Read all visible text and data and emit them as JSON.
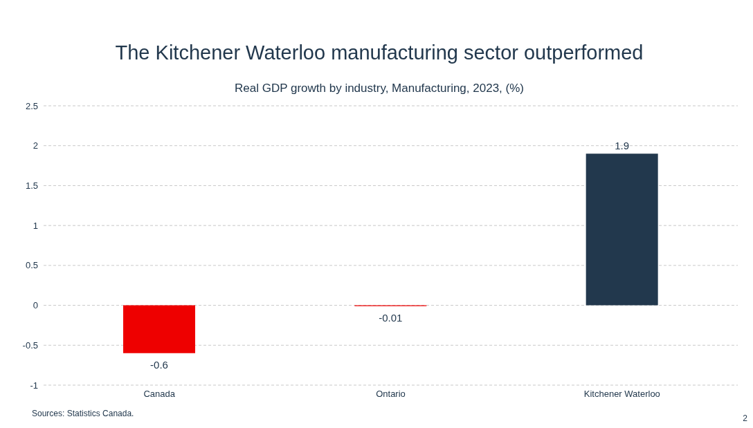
{
  "chart_data": {
    "type": "bar",
    "title": "The Kitchener Waterloo manufacturing sector outperformed",
    "subtitle": "Real GDP growth by industry, Manufacturing, 2023, (%)",
    "categories": [
      "Canada",
      "Ontario",
      "Kitchener Waterloo"
    ],
    "values": [
      -0.6,
      -0.01,
      1.9
    ],
    "colors": [
      "#ee0000",
      "#ee0000",
      "#22384d"
    ],
    "ylim": [
      -1,
      2.5
    ],
    "yticks": [
      -1,
      -0.5,
      0,
      0.5,
      1,
      1.5,
      2,
      2.5
    ],
    "grid": "y",
    "data_labels": true,
    "legend": false,
    "annotations": [
      "Sources: Statistics Canada.",
      "2"
    ]
  }
}
